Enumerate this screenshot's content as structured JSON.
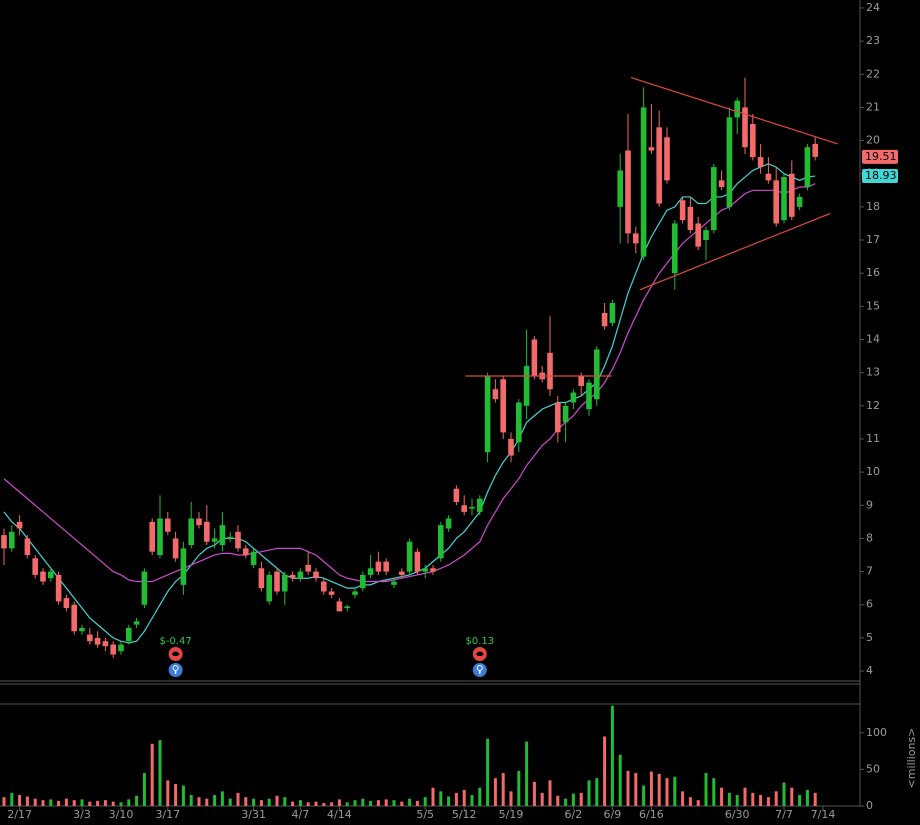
{
  "chart_data": {
    "type": "candlestick",
    "categories": [
      null,
      null,
      "2/17",
      null,
      null,
      null,
      null,
      null,
      null,
      null,
      "3/3",
      null,
      null,
      null,
      null,
      "3/10",
      null,
      null,
      null,
      null,
      null,
      "3/17",
      null,
      null,
      null,
      null,
      null,
      null,
      null,
      null,
      null,
      null,
      "3/31",
      null,
      null,
      null,
      null,
      null,
      "4/7",
      null,
      null,
      null,
      null,
      "4/14",
      null,
      null,
      null,
      null,
      null,
      null,
      null,
      null,
      null,
      null,
      "5/5",
      null,
      null,
      null,
      null,
      "5/12",
      null,
      null,
      null,
      null,
      null,
      "5/19",
      null,
      null,
      null,
      null,
      null,
      null,
      null,
      "6/2",
      null,
      null,
      null,
      null,
      "6/9",
      null,
      null,
      null,
      null,
      "6/16",
      null,
      null,
      null,
      null,
      null,
      null,
      null,
      null,
      null,
      null,
      "6/30",
      null,
      null,
      null,
      null,
      null,
      "7/7",
      null,
      null,
      null,
      null,
      "7/14"
    ],
    "ohlc": [
      [
        8.1,
        8.3,
        7.2,
        7.7
      ],
      [
        7.7,
        8.4,
        7.6,
        8.2
      ],
      [
        8.5,
        8.7,
        8.1,
        8.3
      ],
      [
        8.0,
        8.1,
        7.4,
        7.5
      ],
      [
        7.4,
        7.5,
        6.8,
        6.9
      ],
      [
        7.0,
        7.1,
        6.6,
        6.7
      ],
      [
        6.8,
        7.1,
        6.7,
        7.0
      ],
      [
        6.9,
        7.0,
        6.0,
        6.1
      ],
      [
        6.2,
        6.3,
        5.8,
        5.9
      ],
      [
        6.0,
        6.1,
        5.1,
        5.2
      ],
      [
        5.2,
        5.4,
        5.1,
        5.3
      ],
      [
        5.1,
        5.3,
        4.8,
        4.9
      ],
      [
        5.0,
        5.2,
        4.7,
        4.8
      ],
      [
        4.9,
        5.0,
        4.6,
        4.75
      ],
      [
        4.8,
        4.9,
        4.4,
        4.5
      ],
      [
        4.6,
        4.9,
        4.5,
        4.8
      ],
      [
        4.9,
        5.4,
        4.8,
        5.3
      ],
      [
        5.4,
        5.6,
        5.3,
        5.5
      ],
      [
        6.0,
        7.1,
        5.9,
        7.0
      ],
      [
        8.5,
        8.6,
        7.5,
        7.6
      ],
      [
        7.5,
        9.3,
        7.4,
        8.6
      ],
      [
        8.6,
        8.8,
        8.1,
        8.2
      ],
      [
        8.0,
        8.2,
        7.3,
        7.4
      ],
      [
        6.6,
        7.9,
        6.3,
        7.7
      ],
      [
        7.8,
        9.1,
        7.7,
        8.6
      ],
      [
        8.6,
        8.8,
        8.3,
        8.4
      ],
      [
        8.5,
        9.0,
        7.8,
        7.9
      ],
      [
        7.9,
        8.3,
        7.7,
        8.0
      ],
      [
        7.8,
        8.8,
        7.6,
        8.4
      ],
      [
        8.0,
        8.2,
        7.9,
        8.05
      ],
      [
        8.2,
        8.4,
        7.6,
        7.7
      ],
      [
        7.7,
        7.8,
        7.4,
        7.5
      ],
      [
        7.2,
        7.7,
        7.1,
        7.6
      ],
      [
        7.1,
        7.3,
        6.4,
        6.5
      ],
      [
        6.1,
        7.0,
        6.0,
        6.9
      ],
      [
        7.0,
        7.1,
        6.3,
        6.4
      ],
      [
        6.4,
        7.0,
        6.0,
        6.9
      ],
      [
        6.9,
        7.0,
        6.7,
        6.8
      ],
      [
        6.8,
        7.1,
        6.7,
        7.0
      ],
      [
        7.2,
        7.6,
        6.9,
        7.0
      ],
      [
        7.0,
        7.1,
        6.7,
        6.8
      ],
      [
        6.7,
        6.8,
        6.3,
        6.4
      ],
      [
        6.4,
        6.5,
        6.2,
        6.3
      ],
      [
        6.1,
        6.2,
        5.8,
        5.8
      ],
      [
        5.9,
        6.0,
        5.8,
        5.95
      ],
      [
        6.3,
        6.5,
        6.2,
        6.4
      ],
      [
        6.5,
        7.0,
        6.4,
        6.9
      ],
      [
        6.9,
        7.5,
        6.8,
        7.1
      ],
      [
        7.3,
        7.6,
        6.9,
        7.0
      ],
      [
        7.3,
        7.4,
        6.9,
        7.0
      ],
      [
        6.6,
        6.8,
        6.5,
        6.7
      ],
      [
        7.0,
        7.1,
        6.8,
        6.9
      ],
      [
        7.0,
        8.0,
        6.9,
        7.9
      ],
      [
        7.6,
        7.7,
        6.9,
        7.0
      ],
      [
        7.0,
        7.2,
        6.8,
        7.1
      ],
      [
        7.1,
        7.2,
        6.9,
        7.0
      ],
      [
        7.4,
        8.5,
        7.3,
        8.4
      ],
      [
        8.3,
        8.7,
        8.2,
        8.6
      ],
      [
        9.5,
        9.6,
        9.0,
        9.1
      ],
      [
        9.0,
        9.3,
        8.7,
        8.8
      ],
      [
        8.9,
        9.2,
        8.7,
        8.95
      ],
      [
        8.8,
        9.3,
        8.7,
        9.2
      ],
      [
        10.6,
        13.0,
        10.3,
        12.9
      ],
      [
        12.5,
        12.8,
        12.1,
        12.2
      ],
      [
        12.8,
        12.9,
        11.0,
        11.2
      ],
      [
        11.0,
        11.2,
        10.3,
        10.5
      ],
      [
        10.9,
        12.2,
        10.6,
        12.1
      ],
      [
        12.0,
        14.3,
        11.6,
        13.2
      ],
      [
        14.0,
        14.1,
        12.8,
        12.9
      ],
      [
        13.0,
        13.2,
        12.7,
        12.8
      ],
      [
        13.6,
        14.7,
        12.3,
        12.5
      ],
      [
        12.1,
        12.3,
        10.9,
        11.2
      ],
      [
        11.5,
        12.1,
        10.9,
        12.0
      ],
      [
        12.1,
        12.5,
        11.9,
        12.4
      ],
      [
        12.9,
        13.0,
        12.3,
        12.6
      ],
      [
        11.9,
        12.8,
        11.7,
        12.7
      ],
      [
        12.2,
        13.8,
        12.0,
        13.7
      ],
      [
        14.8,
        15.1,
        14.3,
        14.4
      ],
      [
        14.5,
        15.2,
        14.4,
        15.1
      ],
      [
        18.0,
        19.6,
        16.9,
        19.1
      ],
      [
        19.7,
        20.8,
        16.9,
        17.2
      ],
      [
        17.2,
        17.4,
        16.6,
        16.9
      ],
      [
        16.5,
        21.6,
        16.4,
        21.0
      ],
      [
        19.8,
        21.1,
        19.6,
        19.7
      ],
      [
        20.4,
        20.9,
        18.0,
        18.1
      ],
      [
        20.1,
        20.4,
        18.7,
        18.8
      ],
      [
        16.0,
        17.6,
        15.5,
        17.5
      ],
      [
        18.2,
        18.3,
        17.5,
        17.6
      ],
      [
        18.0,
        18.3,
        17.2,
        17.3
      ],
      [
        17.5,
        17.7,
        16.7,
        16.8
      ],
      [
        17.0,
        17.4,
        16.4,
        17.3
      ],
      [
        17.3,
        19.3,
        17.2,
        19.2
      ],
      [
        18.8,
        19.1,
        18.5,
        18.6
      ],
      [
        18.0,
        21.0,
        17.9,
        20.7
      ],
      [
        20.7,
        21.3,
        20.2,
        21.2
      ],
      [
        21.0,
        21.9,
        19.6,
        19.8
      ],
      [
        20.5,
        20.8,
        19.4,
        19.5
      ],
      [
        19.5,
        19.9,
        19.0,
        19.2
      ],
      [
        19.0,
        19.5,
        18.7,
        18.8
      ],
      [
        18.8,
        19.2,
        17.4,
        17.5
      ],
      [
        17.6,
        19.0,
        17.5,
        18.9
      ],
      [
        19.0,
        19.4,
        17.6,
        17.7
      ],
      [
        18.0,
        18.4,
        17.9,
        18.3
      ],
      [
        18.6,
        19.9,
        18.5,
        19.8
      ],
      [
        19.9,
        20.1,
        19.4,
        19.51
      ],
      null
    ],
    "volume": [
      12,
      18,
      15,
      13,
      10,
      8,
      9,
      7,
      10,
      8,
      9,
      6,
      7,
      8,
      6,
      5,
      9,
      14,
      45,
      85,
      90,
      35,
      30,
      28,
      15,
      12,
      10,
      15,
      20,
      10,
      18,
      12,
      10,
      8,
      10,
      14,
      12,
      6,
      8,
      5,
      6,
      4,
      5,
      9,
      5,
      8,
      10,
      7,
      8,
      9,
      8,
      6,
      10,
      7,
      12,
      25,
      20,
      13,
      18,
      22,
      15,
      25,
      92,
      38,
      45,
      20,
      48,
      88,
      33,
      18,
      35,
      14,
      10,
      17,
      18,
      35,
      38,
      95,
      137,
      70,
      48,
      45,
      28,
      47,
      44,
      38,
      40,
      20,
      12,
      8,
      45,
      38,
      25,
      18,
      15,
      25,
      18,
      15,
      12,
      20,
      32,
      25,
      15,
      22,
      18,
      null
    ],
    "lines": [
      {
        "color": "#3fd6d6",
        "values": [
          8.8,
          8.5,
          8.3,
          8.0,
          7.7,
          7.4,
          7.1,
          6.8,
          6.5,
          6.2,
          5.9,
          5.6,
          5.4,
          5.2,
          5.0,
          4.9,
          4.85,
          4.9,
          5.2,
          5.6,
          6.0,
          6.4,
          6.7,
          6.9,
          7.2,
          7.5,
          7.7,
          7.8,
          8.0,
          8.0,
          8.0,
          7.9,
          7.7,
          7.5,
          7.3,
          7.1,
          6.9,
          6.8,
          6.8,
          6.8,
          6.85,
          6.8,
          6.7,
          6.6,
          6.5,
          6.5,
          6.6,
          6.6,
          6.7,
          6.75,
          6.8,
          6.85,
          6.9,
          7.0,
          7.1,
          7.3,
          7.5,
          7.7,
          8.0,
          8.2,
          8.5,
          8.8,
          9.4,
          9.9,
          10.3,
          10.6,
          11.0,
          11.5,
          11.7,
          11.9,
          12.0,
          12.1,
          12.1,
          12.2,
          12.3,
          12.5,
          12.7,
          13.2,
          13.8,
          14.6,
          15.4,
          16.0,
          16.6,
          17.1,
          17.5,
          17.9,
          18.0,
          18.3,
          18.3,
          18.1,
          18.1,
          18.3,
          18.3,
          18.4,
          18.7,
          18.9,
          19.1,
          19.2,
          19.3,
          19.2,
          19.0,
          18.9,
          18.8,
          18.9,
          18.93,
          null
        ]
      },
      {
        "color": "#d048d0",
        "values": [
          9.8,
          9.6,
          9.4,
          9.2,
          9.0,
          8.8,
          8.6,
          8.4,
          8.2,
          8.0,
          7.8,
          7.6,
          7.4,
          7.2,
          7.0,
          6.9,
          6.75,
          6.7,
          6.7,
          6.7,
          6.8,
          6.9,
          7.0,
          7.1,
          7.2,
          7.3,
          7.4,
          7.5,
          7.55,
          7.55,
          7.5,
          7.5,
          7.55,
          7.6,
          7.65,
          7.7,
          7.7,
          7.7,
          7.7,
          7.6,
          7.5,
          7.3,
          7.1,
          6.9,
          6.8,
          6.75,
          6.7,
          6.7,
          6.7,
          6.7,
          6.75,
          6.8,
          6.85,
          6.9,
          6.95,
          7.0,
          7.1,
          7.2,
          7.35,
          7.5,
          7.7,
          7.9,
          8.4,
          8.8,
          9.2,
          9.5,
          9.8,
          10.2,
          10.5,
          10.8,
          11.0,
          11.3,
          11.5,
          11.7,
          12.0,
          12.2,
          12.4,
          12.7,
          13.1,
          13.6,
          14.2,
          14.7,
          15.2,
          15.6,
          16.0,
          16.3,
          16.6,
          16.9,
          17.1,
          17.3,
          17.5,
          17.7,
          17.9,
          18.0,
          18.2,
          18.4,
          18.5,
          18.5,
          18.5,
          18.5,
          18.4,
          18.5,
          18.6,
          18.6,
          18.7,
          null
        ]
      }
    ],
    "trendlines": [
      {
        "color": "#e04a3a",
        "x": [
          80.4,
          106.9
        ],
        "y": [
          21.9,
          19.9
        ]
      },
      {
        "color": "#e04a3a",
        "x": [
          81.5,
          105.9
        ],
        "y": [
          15.5,
          17.8
        ]
      },
      {
        "color": "#e04a3a",
        "x": [
          59.2,
          77.9
        ],
        "y": [
          12.9,
          12.9
        ]
      }
    ],
    "earnings": [
      {
        "category_index": 22,
        "label": "$-0.47"
      },
      {
        "category_index": 61,
        "label": "$0.13"
      }
    ],
    "up_color": "#22bb33",
    "down_color": "#f26a6a",
    "ylim": [
      3.73,
      24.24
    ],
    "yticks": [
      4,
      5,
      6,
      7,
      8,
      9,
      10,
      11,
      12,
      13,
      14,
      15,
      16,
      17,
      18,
      19,
      20,
      21,
      22,
      23,
      24
    ],
    "volume_ylim": [
      0,
      138
    ],
    "volume_yticks": [
      0,
      50,
      100
    ],
    "volume_label": "<millions>"
  }
}
